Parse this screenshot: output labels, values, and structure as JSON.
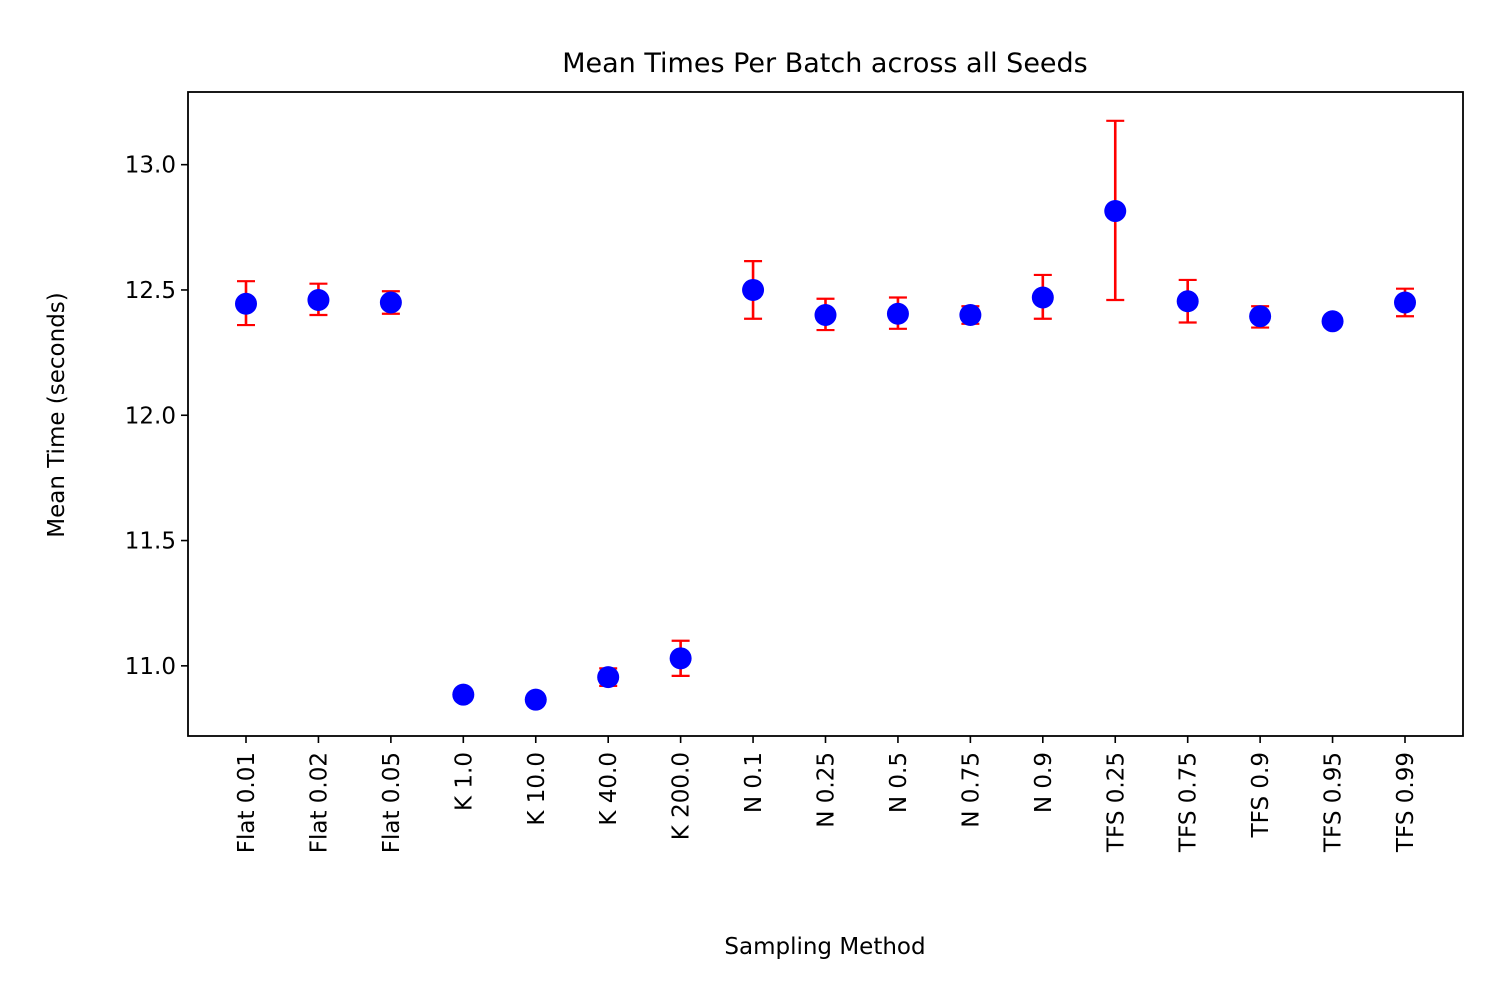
{
  "chart_data": {
    "type": "scatter",
    "title": "Mean Times Per Batch across all Seeds",
    "xlabel": "Sampling Method",
    "ylabel": "Mean Time (seconds)",
    "ylim": [
      10.72,
      13.29
    ],
    "yticks": [
      11.0,
      11.5,
      12.0,
      12.5,
      13.0
    ],
    "ytick_labels": [
      "11.0",
      "11.5",
      "12.0",
      "12.5",
      "13.0"
    ],
    "grid": false,
    "legend": "none",
    "marker_color": "#0000ff",
    "errorbar_color": "#ff0000",
    "categories": [
      "Flat 0.01",
      "Flat 0.02",
      "Flat 0.05",
      "K 1.0",
      "K 10.0",
      "K 40.0",
      "K 200.0",
      "N 0.1",
      "N 0.25",
      "N 0.5",
      "N 0.75",
      "N 0.9",
      "TFS 0.25",
      "TFS 0.75",
      "TFS 0.9",
      "TFS 0.95",
      "TFS 0.99"
    ],
    "values": [
      12.445,
      12.46,
      12.45,
      10.885,
      10.865,
      10.955,
      11.03,
      12.5,
      12.4,
      12.405,
      12.4,
      12.47,
      12.815,
      12.455,
      12.395,
      12.375,
      12.45
    ],
    "err_low": [
      12.36,
      12.4,
      12.405,
      10.885,
      10.865,
      10.92,
      10.96,
      12.385,
      12.34,
      12.345,
      12.365,
      12.385,
      12.46,
      12.37,
      12.35,
      12.375,
      12.395
    ],
    "err_high": [
      12.535,
      12.525,
      12.495,
      10.885,
      10.865,
      10.99,
      11.1,
      12.615,
      12.465,
      12.47,
      12.435,
      12.56,
      13.175,
      12.54,
      12.435,
      12.375,
      12.505
    ]
  }
}
